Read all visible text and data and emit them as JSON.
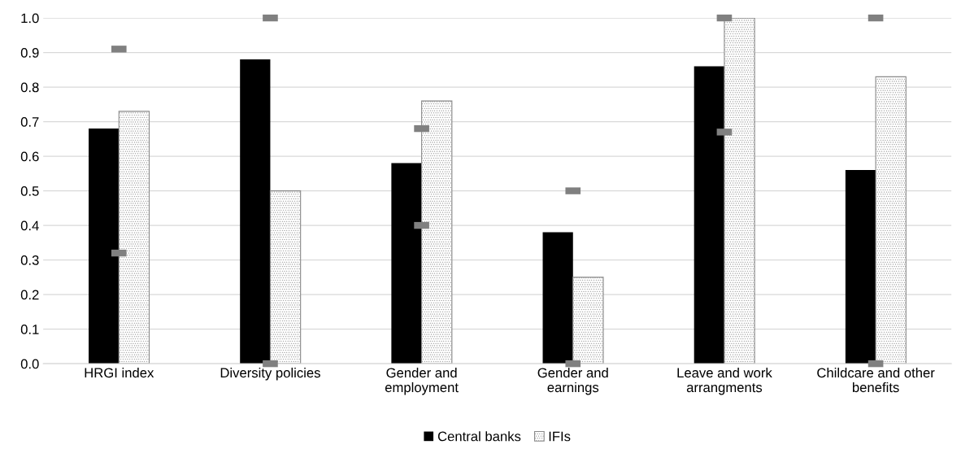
{
  "chart_data": {
    "type": "bar",
    "categories": [
      "HRGI index",
      "Diversity policies",
      "Gender and\nemployment",
      "Gender and\nearnings",
      "Leave and work\narrangments",
      "Childcare and other\nbenefits"
    ],
    "series": [
      {
        "name": "Central banks",
        "color": "#000000",
        "values": [
          0.68,
          0.88,
          0.58,
          0.38,
          0.86,
          0.56
        ]
      },
      {
        "name": "IFIs",
        "color": "#8a8a8a",
        "values": [
          0.73,
          0.5,
          0.76,
          0.25,
          1.0,
          0.83
        ]
      },
      {
        "type": "scatter",
        "color": "#808080",
        "x": [
          "HRGI index",
          "Diversity policies",
          "Gender and\nemployment",
          "Gender and\nearnings",
          "Leave and work\narrangments",
          "Childcare and other\nbenefits"
        ],
        "values": [
          0.91,
          1.0,
          0.68,
          0.5,
          1.0,
          1.0
        ]
      },
      {
        "type": "scatter",
        "color": "#808080",
        "x": [
          "HRGI index",
          "Diversity policies",
          "Gender and\nemployment",
          "Gender and\nearnings",
          "Leave and work\narrangments",
          "Childcare and other\nbenefits"
        ],
        "values": [
          0.32,
          0.0,
          0.4,
          0.0,
          0.67,
          0.0
        ]
      }
    ],
    "ylim": [
      0,
      1.0
    ],
    "yticks": [
      {
        "value": 0,
        "label": "0.0"
      },
      0.1,
      0.2,
      0.3,
      0.4,
      0.5,
      0.6,
      0.7,
      0.8,
      0.9,
      {
        "value": 1.0,
        "label": "1.0"
      }
    ],
    "grid": "y",
    "legend": "bottom"
  }
}
